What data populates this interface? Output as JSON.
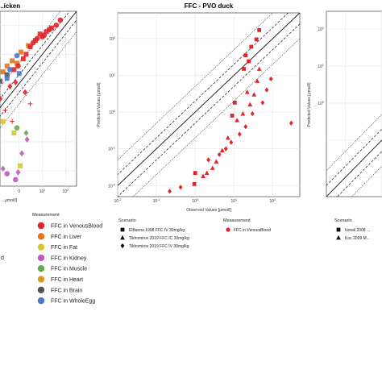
{
  "colors": {
    "VenousBlood": "#e0252b",
    "Liver": "#e8721c",
    "Fat": "#d4c72a",
    "Kidney": "#c05bbd",
    "Muscle": "#6aa84f",
    "Heart": "#d99b1f",
    "Brain": "#555555",
    "WholeEgg": "#4c78c8",
    "grid": "#e6e6e6",
    "frame": "#444444",
    "identity": "#111111"
  },
  "chart_data": [
    {
      "type": "scatter",
      "title": "...icken",
      "xlabel": "...µmol/l]",
      "ylabel": "",
      "x_tick_labels": [
        "0",
        "10",
        "10"
      ],
      "x_tick_exponents": [
        "",
        "1",
        "2"
      ],
      "scale": "log",
      "legend": {
        "title": "Measurement",
        "entries": [
          "FFC in VenousBlood",
          "FFC in Liver",
          "FFC in Fat",
          "FFC in Kidney",
          "FFC in Muscle",
          "FFC in Heart",
          "FFC in Brain",
          "FFC in WholeEgg"
        ],
        "marker_colors": [
          "VenousBlood",
          "Liver",
          "Fat",
          "Kidney",
          "Muscle",
          "Heart",
          "Brain",
          "WholeEgg"
        ],
        "side_letter": "d"
      },
      "series": [
        {
          "color": "Liver",
          "marker": "square",
          "points": [
            [
              0.2,
              2.5
            ],
            [
              0.5,
              6
            ],
            [
              0.1,
              1.2
            ],
            [
              1.2,
              12
            ],
            [
              0.8,
              5
            ],
            [
              2.5,
              20
            ],
            [
              0.3,
              4
            ]
          ]
        },
        {
          "color": "VenousBlood",
          "marker": "square",
          "points": [
            [
              1.5,
              7
            ],
            [
              3,
              18
            ],
            [
              5,
              30
            ],
            [
              8,
              50
            ],
            [
              15,
              60
            ],
            [
              25,
              80
            ],
            [
              0.6,
              3
            ],
            [
              2,
              10
            ]
          ]
        },
        {
          "color": "VenousBlood",
          "marker": "circle",
          "points": [
            [
              4,
              25
            ],
            [
              10,
              40
            ],
            [
              20,
              70
            ],
            [
              40,
              100
            ],
            [
              60,
              150
            ],
            [
              0.9,
              4
            ],
            [
              6,
              35
            ],
            [
              12,
              45
            ]
          ]
        },
        {
          "color": "VenousBlood",
          "marker": "diamond",
          "points": [
            [
              0.4,
              0.8
            ],
            [
              0.15,
              0.3
            ],
            [
              0.7,
              1.1
            ],
            [
              1.8,
              0.5
            ]
          ]
        },
        {
          "color": "VenousBlood",
          "marker": "cross",
          "points": [
            [
              0.25,
              0.12
            ],
            [
              0.5,
              0.05
            ],
            [
              3,
              0.2
            ],
            [
              0.1,
              0.06
            ]
          ]
        },
        {
          "color": "Fat",
          "marker": "square",
          "points": [
            [
              0.2,
              0.05
            ],
            [
              0.6,
              0.02
            ],
            [
              1.1,
              0.0015
            ]
          ]
        },
        {
          "color": "Kidney",
          "marker": "circle",
          "points": [
            [
              0.05,
              0.006
            ],
            [
              0.3,
              0.0008
            ],
            [
              0.7,
              0.0005
            ]
          ]
        },
        {
          "color": "Kidney",
          "marker": "diamond",
          "points": [
            [
              1.3,
              0.004
            ],
            [
              2.2,
              0.012
            ],
            [
              0.9,
              0.0009
            ],
            [
              0.2,
              0.0012
            ]
          ]
        },
        {
          "color": "Muscle",
          "marker": "circle",
          "points": [
            [
              0.1,
              0.02
            ],
            [
              0.8,
              0.03
            ]
          ]
        },
        {
          "color": "Muscle",
          "marker": "diamond",
          "points": [
            [
              2.0,
              0.02
            ]
          ]
        },
        {
          "color": "Brain",
          "marker": "square",
          "points": [
            [
              0.3,
              2.0
            ],
            [
              0.15,
              1.2
            ]
          ]
        },
        {
          "color": "WholeEgg",
          "marker": "square",
          "points": [
            [
              0.1,
              0.6
            ],
            [
              0.3,
              1.5
            ],
            [
              1.0,
              2.2
            ],
            [
              0.05,
              0.3
            ]
          ]
        },
        {
          "color": "WholeEgg",
          "marker": "circle",
          "points": [
            [
              0.8,
              9
            ],
            [
              0.4,
              3
            ]
          ]
        }
      ]
    },
    {
      "type": "scatter",
      "title": "FFC - PVO duck",
      "xlabel": "Observed Values [µmol/l]",
      "ylabel": "Predicted Values [µmol/l]",
      "scale": "log",
      "xlim": [
        0.01,
        500
      ],
      "ylim": [
        0.005,
        500
      ],
      "x_tick_labels": [
        "10",
        "10",
        "10",
        "10",
        "10"
      ],
      "x_tick_exponents": [
        "-2",
        "-1",
        "0",
        "1",
        "2"
      ],
      "y_tick_labels": [
        "10",
        "10",
        "10",
        "10",
        "10"
      ],
      "y_tick_exponents": [
        "-2",
        "-1",
        "0",
        "1",
        "2"
      ],
      "legend_scenario": {
        "title": "Scenario",
        "entries": [
          "ElBanna 1998 FFC IV 30mg/kg",
          "Tikhomirov 2019 FFC IC 30mg/kg",
          "Tikhomirov 2019 FFC IV 30mg/kg"
        ],
        "markers": [
          "square",
          "triangle",
          "diamond"
        ]
      },
      "legend_measurement": {
        "title": "Measurement",
        "entries": [
          "FFC in VenousBlood"
        ]
      },
      "series": [
        {
          "name": "ElBanna 1998 FFC IV 30mg/kg",
          "marker": "square",
          "points": [
            [
              0.95,
              0.011
            ],
            [
              1.0,
              0.022
            ],
            [
              9,
              0.8
            ],
            [
              10.5,
              1.8
            ],
            [
              18,
              15
            ],
            [
              20,
              35
            ],
            [
              28,
              60
            ],
            [
              38,
              95
            ],
            [
              45,
              170
            ],
            [
              24,
              24
            ]
          ]
        },
        {
          "name": "Tikhomirov 2019 FFC IC 30mg/kg",
          "marker": "triangle",
          "points": [
            [
              1.6,
              0.018
            ],
            [
              2.0,
              0.022
            ],
            [
              2.8,
              0.03
            ],
            [
              3.5,
              0.045
            ],
            [
              5.0,
              0.09
            ],
            [
              7.0,
              0.2
            ],
            [
              12,
              0.6
            ],
            [
              17,
              0.9
            ],
            [
              26,
              1.6
            ],
            [
              33,
              3.0
            ],
            [
              40,
              7
            ],
            [
              45,
              15
            ],
            [
              22,
              3.5
            ]
          ]
        },
        {
          "name": "Tikhomirov 2019 FFC IV 30mg/kg",
          "marker": "diamond",
          "points": [
            [
              0.22,
              0.007
            ],
            [
              0.42,
              0.009
            ],
            [
              2.2,
              0.05
            ],
            [
              4.2,
              0.07
            ],
            [
              6.2,
              0.1
            ],
            [
              8.5,
              0.15
            ],
            [
              14,
              0.25
            ],
            [
              20,
              0.4
            ],
            [
              30,
              0.9
            ],
            [
              55,
              1.8
            ],
            [
              70,
              4
            ],
            [
              90,
              8
            ],
            [
              300,
              0.5
            ]
          ]
        }
      ]
    },
    {
      "type": "scatter",
      "title": "",
      "xlabel": "",
      "ylabel": "Predicted Values [µmol/l]",
      "scale": "log",
      "y_tick_labels": [
        "10",
        "10",
        "10"
      ],
      "y_tick_exponents": [
        "2",
        "1",
        "0"
      ],
      "legend_scenario": {
        "title": "Scenario",
        "entries": [
          "Ismail 2008 ...",
          "Koc 2009 M..."
        ],
        "markers": [
          "square",
          "triangle"
        ]
      },
      "series": []
    }
  ]
}
